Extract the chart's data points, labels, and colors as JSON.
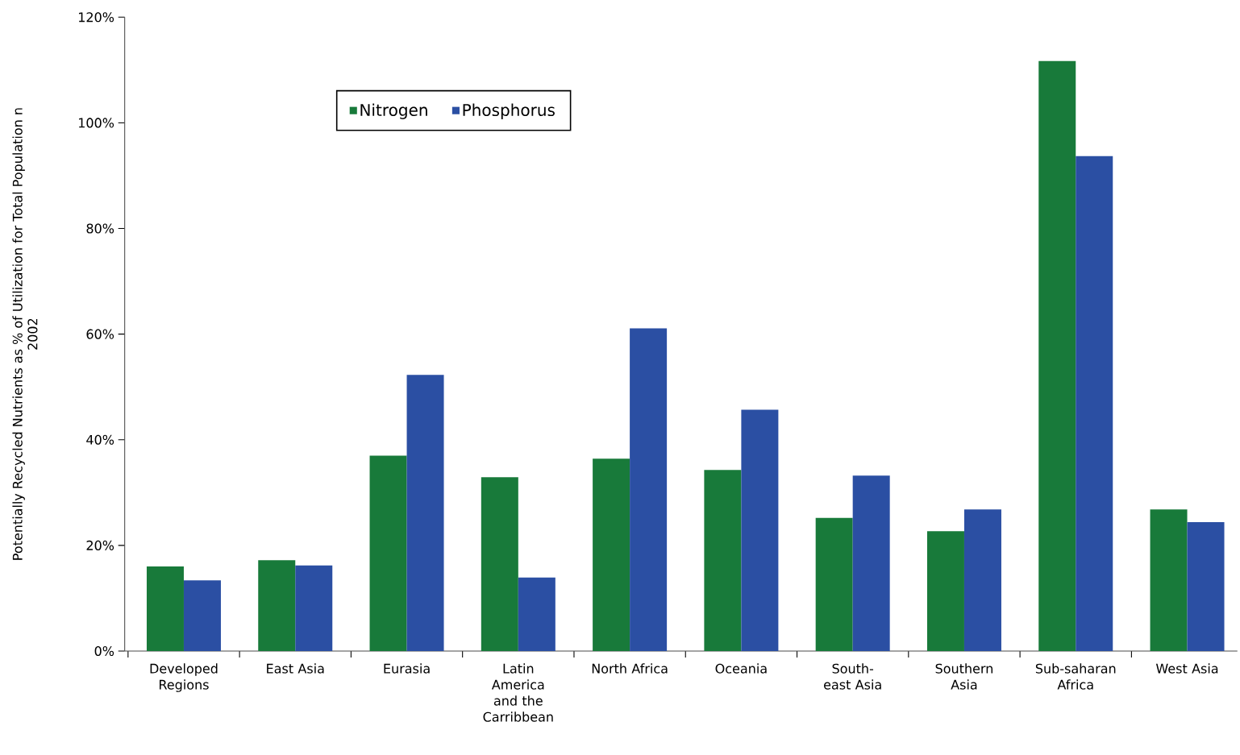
{
  "chart_data": {
    "type": "bar",
    "ylabel": "Potentially Recycled Nutrients as % of Utilization for Total Population n 2002",
    "categories": [
      "Developed Regions",
      "East Asia",
      "Eurasia",
      "Latin America and the Carribbean",
      "North Africa",
      "Oceania",
      "South-east Asia",
      "Southern Asia",
      "Sub-saharan Africa",
      "West Asia"
    ],
    "series": [
      {
        "name": "Nitrogen",
        "color": "#187a3a",
        "values": [
          16.0,
          17.2,
          37.0,
          32.9,
          36.4,
          34.3,
          25.2,
          22.7,
          111.7,
          26.8
        ]
      },
      {
        "name": "Phosphorus",
        "color": "#2b4fa3",
        "values": [
          13.4,
          16.2,
          52.3,
          13.9,
          61.1,
          45.7,
          33.2,
          26.8,
          93.7,
          24.4
        ]
      }
    ],
    "ylim": [
      0,
      120
    ],
    "yticks": [
      {
        "value": 0,
        "label": "0%"
      },
      {
        "value": 20,
        "label": "20%"
      },
      {
        "value": 40,
        "label": "40%"
      },
      {
        "value": 60,
        "label": "60%"
      },
      {
        "value": 80,
        "label": "80%"
      },
      {
        "value": 100,
        "label": "100%"
      },
      {
        "value": 120,
        "label": "120%"
      }
    ],
    "grid": false,
    "legend": "top left"
  }
}
